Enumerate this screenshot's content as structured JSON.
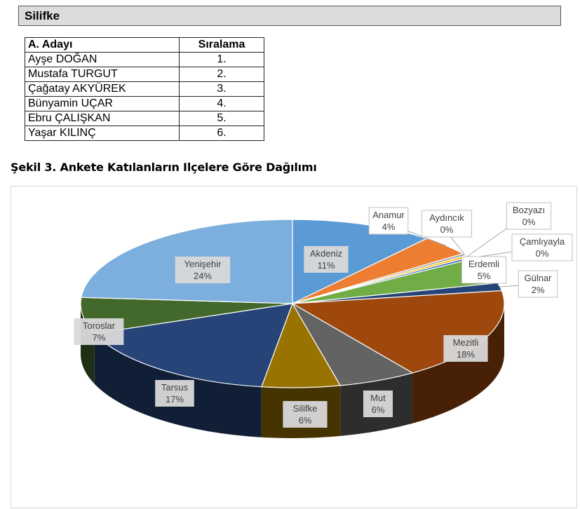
{
  "header": {
    "title": "Silifke"
  },
  "ranking_table": {
    "columns": [
      "A.  Adayı",
      "Sıralama"
    ],
    "rows": [
      {
        "name": "Ayşe DOĞAN",
        "rank": "1."
      },
      {
        "name": "Mustafa TURGUT",
        "rank": "2."
      },
      {
        "name": "Çağatay AKYÜREK",
        "rank": "3."
      },
      {
        "name": "Bünyamin UÇAR",
        "rank": "4."
      },
      {
        "name": "Ebru ÇALIŞKAN",
        "rank": "5."
      },
      {
        "name": "Yaşar KILINÇ",
        "rank": "6."
      }
    ]
  },
  "figure_title": "Şekil 3. Ankete Katılanların Ilçelere Göre Dağılımı",
  "chart_data": {
    "type": "pie",
    "title": "",
    "slices": [
      {
        "label": "Akdeniz",
        "value": 11,
        "display": "11%",
        "color": "#5b9bd5"
      },
      {
        "label": "Anamur",
        "value": 4,
        "display": "4%",
        "color": "#ed7d31"
      },
      {
        "label": "Aydıncık",
        "value": 0.4,
        "display": "0%",
        "color": "#a5a5a5"
      },
      {
        "label": "Bozyazı",
        "value": 0.4,
        "display": "0%",
        "color": "#ffc000"
      },
      {
        "label": "Çamlıyayla",
        "value": 0.4,
        "display": "0%",
        "color": "#4472c4"
      },
      {
        "label": "Erdemli",
        "value": 5,
        "display": "5%",
        "color": "#70ad47"
      },
      {
        "label": "Gülnar",
        "value": 1.5,
        "display": "2%",
        "color": "#264478"
      },
      {
        "label": "Mezitli",
        "value": 18,
        "display": "18%",
        "color": "#9e480e"
      },
      {
        "label": "Mut",
        "value": 6,
        "display": "6%",
        "color": "#636363"
      },
      {
        "label": "Silifke",
        "value": 6,
        "display": "6%",
        "color": "#997300"
      },
      {
        "label": "Tarsus",
        "value": 17,
        "display": "17%",
        "color": "#264478"
      },
      {
        "label": "Toroslar",
        "value": 7,
        "display": "7%",
        "color": "#43682b"
      },
      {
        "label": "Yenişehir",
        "value": 24,
        "display": "24%",
        "color": "#7cafdd"
      }
    ]
  }
}
